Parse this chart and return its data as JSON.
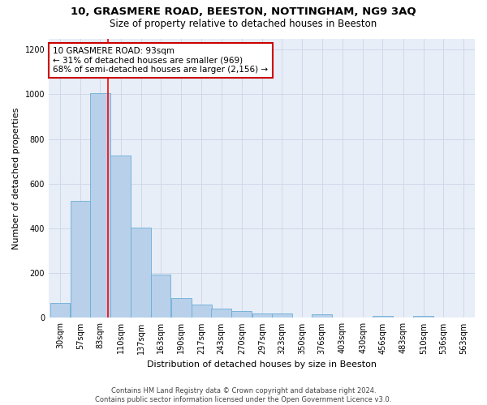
{
  "title": "10, GRASMERE ROAD, BEESTON, NOTTINGHAM, NG9 3AQ",
  "subtitle": "Size of property relative to detached houses in Beeston",
  "xlabel": "Distribution of detached houses by size in Beeston",
  "ylabel": "Number of detached properties",
  "footer_line1": "Contains HM Land Registry data © Crown copyright and database right 2024.",
  "footer_line2": "Contains public sector information licensed under the Open Government Licence v3.0.",
  "bar_labels": [
    "30sqm",
    "57sqm",
    "83sqm",
    "110sqm",
    "137sqm",
    "163sqm",
    "190sqm",
    "217sqm",
    "243sqm",
    "270sqm",
    "297sqm",
    "323sqm",
    "350sqm",
    "376sqm",
    "403sqm",
    "430sqm",
    "456sqm",
    "483sqm",
    "510sqm",
    "536sqm",
    "563sqm"
  ],
  "bar_values": [
    65,
    525,
    1005,
    725,
    405,
    195,
    90,
    60,
    40,
    32,
    20,
    18,
    0,
    15,
    0,
    0,
    10,
    0,
    8,
    0,
    0
  ],
  "bar_color": "#b8d0ea",
  "bar_edgecolor": "#6aaed6",
  "annotation_text": "10 GRASMERE ROAD: 93sqm\n← 31% of detached houses are smaller (969)\n68% of semi-detached houses are larger (2,156) →",
  "annotation_box_edgecolor": "#cc0000",
  "annotation_box_facecolor": "#ffffff",
  "redline_x": 93,
  "bin_width": 27,
  "ylim": [
    0,
    1250
  ],
  "yticks": [
    0,
    200,
    400,
    600,
    800,
    1000,
    1200
  ],
  "grid_color": "#d0d8e8",
  "bg_color": "#e8eef8",
  "title_fontsize": 9.5,
  "subtitle_fontsize": 8.5,
  "label_fontsize": 8,
  "tick_fontsize": 7,
  "annotation_fontsize": 7.5,
  "footer_fontsize": 6,
  "ylabel_fontsize": 8
}
